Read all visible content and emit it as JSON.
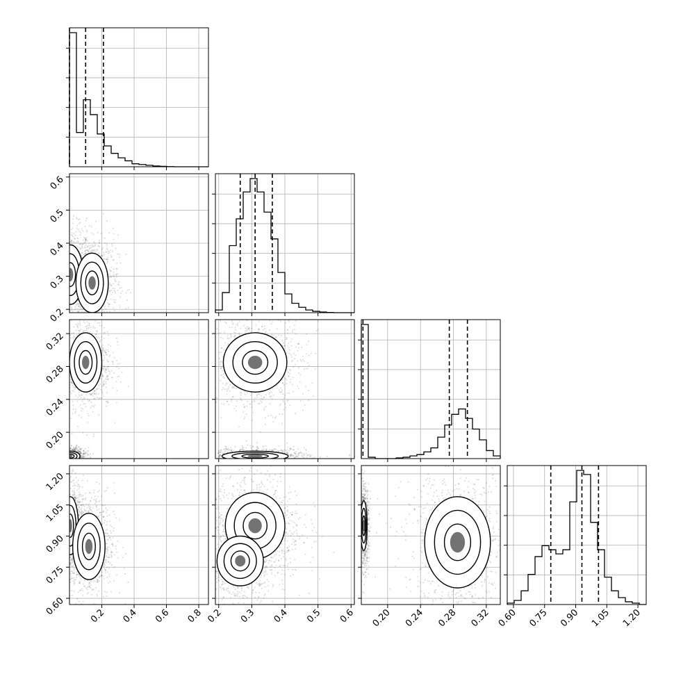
{
  "chart_data": {
    "type": "corner",
    "grid": true,
    "parameters": [
      {
        "range": [
          0.0,
          0.86
        ],
        "ticks": [
          0.2,
          0.4,
          0.6,
          0.8
        ],
        "tick_labels": [
          "0.2",
          "0.4",
          "0.6",
          "0.8"
        ],
        "quantiles": [
          0.0,
          0.1,
          0.21
        ]
      },
      {
        "range": [
          0.19,
          0.61
        ],
        "ticks": [
          0.2,
          0.3,
          0.4,
          0.5,
          0.6
        ],
        "tick_labels": [
          "0.2",
          "0.3",
          "0.4",
          "0.5",
          "0.6"
        ],
        "quantiles": [
          0.265,
          0.31,
          0.362
        ]
      },
      {
        "range": [
          0.168,
          0.337
        ],
        "ticks": [
          0.2,
          0.24,
          0.28,
          0.32
        ],
        "tick_labels": [
          "0.20",
          "0.24",
          "0.28",
          "0.32"
        ],
        "quantiles": [
          0.17,
          0.275,
          0.297
        ]
      },
      {
        "range": [
          0.57,
          1.24
        ],
        "ticks": [
          0.6,
          0.75,
          0.9,
          1.05,
          1.2
        ],
        "tick_labels": [
          "0.60",
          "0.75",
          "0.90",
          "1.05",
          "1.20"
        ],
        "quantiles": [
          0.78,
          0.93,
          1.01
        ]
      }
    ],
    "histograms": [
      {
        "parameter": 0,
        "bin_edges": [
          0.0,
          0.043,
          0.086,
          0.129,
          0.172,
          0.215,
          0.258,
          0.301,
          0.344,
          0.387,
          0.43,
          0.473,
          0.516,
          0.559,
          0.602,
          0.645,
          0.688,
          0.731,
          0.774,
          0.817,
          0.86
        ],
        "counts": [
          0.9,
          0.23,
          0.45,
          0.35,
          0.22,
          0.14,
          0.09,
          0.06,
          0.04,
          0.02,
          0.015,
          0.01,
          0.005,
          0.003,
          0.001,
          0,
          0,
          0,
          0,
          0
        ]
      },
      {
        "parameter": 1,
        "bin_edges": [
          0.19,
          0.211,
          0.232,
          0.253,
          0.274,
          0.295,
          0.316,
          0.337,
          0.358,
          0.379,
          0.4,
          0.421,
          0.442,
          0.463,
          0.484,
          0.505,
          0.526,
          0.547,
          0.568,
          0.589,
          0.61
        ],
        "counts": [
          0.02,
          0.15,
          0.5,
          0.7,
          0.9,
          1.0,
          0.9,
          0.75,
          0.55,
          0.3,
          0.14,
          0.07,
          0.04,
          0.02,
          0.01,
          0.005,
          0.002,
          0,
          0,
          0
        ]
      },
      {
        "parameter": 2,
        "bin_edges": [
          0.168,
          0.17645,
          0.1849,
          0.19335,
          0.2018,
          0.21025,
          0.2187,
          0.22715,
          0.2356,
          0.24405,
          0.2525,
          0.26095,
          0.2694,
          0.27785,
          0.2863,
          0.29475,
          0.3032,
          0.31165,
          0.3201,
          0.32855,
          0.337
        ],
        "counts": [
          1.0,
          0.01,
          0.0,
          0.0,
          0.0,
          0.005,
          0.01,
          0.02,
          0.03,
          0.05,
          0.08,
          0.16,
          0.25,
          0.33,
          0.37,
          0.3,
          0.22,
          0.14,
          0.06,
          0.02
        ]
      },
      {
        "parameter": 3,
        "bin_edges": [
          0.57,
          0.6035,
          0.637,
          0.6705,
          0.704,
          0.7375,
          0.771,
          0.8045,
          0.838,
          0.8715,
          0.905,
          0.9385,
          0.972,
          1.0055,
          1.039,
          1.0725,
          1.106,
          1.1395,
          1.173,
          1.2065,
          1.24
        ],
        "counts": [
          0.01,
          0.03,
          0.1,
          0.22,
          0.35,
          0.43,
          0.4,
          0.37,
          0.4,
          0.75,
          0.98,
          0.95,
          0.6,
          0.4,
          0.2,
          0.1,
          0.05,
          0.02,
          0.01,
          0.0
        ]
      }
    ],
    "contours": [
      {
        "x": 0,
        "y": 1,
        "modes": [
          {
            "center": [
              0.005,
              0.305
            ],
            "sigma": [
              0.04,
              0.045
            ]
          },
          {
            "center": [
              0.14,
              0.28
            ],
            "sigma": [
              0.05,
              0.045
            ]
          }
        ]
      },
      {
        "x": 0,
        "y": 2,
        "modes": [
          {
            "center": [
              0.1,
              0.285
            ],
            "sigma": [
              0.05,
              0.018
            ]
          },
          {
            "center": [
              0.005,
              0.171
            ],
            "sigma": [
              0.03,
              0.003
            ]
          }
        ]
      },
      {
        "x": 1,
        "y": 2,
        "modes": [
          {
            "center": [
              0.31,
              0.285
            ],
            "sigma": [
              0.048,
              0.018
            ]
          },
          {
            "center": [
              0.31,
              0.171
            ],
            "sigma": [
              0.05,
              0.003
            ]
          }
        ]
      },
      {
        "x": 0,
        "y": 3,
        "modes": [
          {
            "center": [
              0.005,
              0.95
            ],
            "sigma": [
              0.025,
              0.07
            ]
          },
          {
            "center": [
              0.12,
              0.85
            ],
            "sigma": [
              0.05,
              0.08
            ]
          }
        ]
      },
      {
        "x": 1,
        "y": 3,
        "modes": [
          {
            "center": [
              0.31,
              0.95
            ],
            "sigma": [
              0.045,
              0.08
            ]
          },
          {
            "center": [
              0.265,
              0.78
            ],
            "sigma": [
              0.035,
              0.06
            ]
          }
        ]
      },
      {
        "x": 2,
        "y": 3,
        "modes": [
          {
            "center": [
              0.171,
              0.95
            ],
            "sigma": [
              0.002,
              0.06
            ]
          },
          {
            "center": [
              0.285,
              0.87
            ],
            "sigma": [
              0.02,
              0.11
            ]
          }
        ]
      }
    ]
  }
}
